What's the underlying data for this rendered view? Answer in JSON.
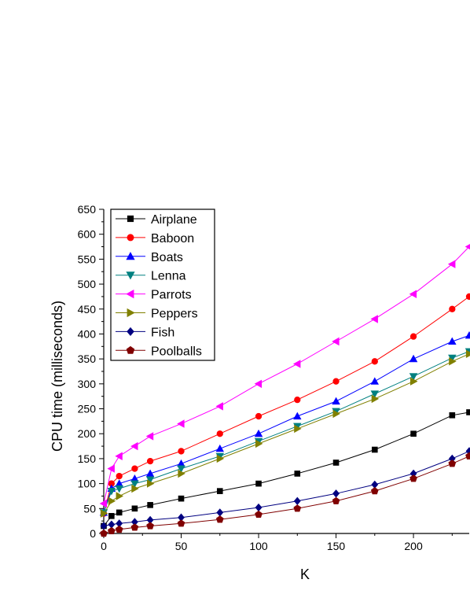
{
  "chart_data": {
    "type": "line",
    "title": "",
    "xlabel": "K",
    "ylabel": "CPU time (milliseconds)",
    "xlim": [
      0,
      236
    ],
    "ylim": [
      0,
      650
    ],
    "x_ticks": [
      0,
      50,
      100,
      150,
      200
    ],
    "y_ticks": [
      0,
      50,
      100,
      150,
      200,
      250,
      300,
      350,
      400,
      450,
      500,
      550,
      600,
      650
    ],
    "x_tick_labels": [
      "0",
      "50",
      "100",
      "150",
      "200"
    ],
    "y_tick_labels": [
      "0",
      "50",
      "100",
      "150",
      "200",
      "250",
      "300",
      "350",
      "400",
      "450",
      "500",
      "550",
      "600",
      "650"
    ],
    "grid": false,
    "legend_position": "top-left",
    "series": [
      {
        "name": "Airplane",
        "color": "#000000",
        "marker": "square",
        "x": [
          0,
          5,
          10,
          20,
          30,
          50,
          75,
          100,
          125,
          150,
          175,
          200,
          225,
          236
        ],
        "y": [
          15,
          35,
          42,
          50,
          57,
          70,
          85,
          100,
          120,
          142,
          168,
          200,
          237,
          243
        ]
      },
      {
        "name": "Baboon",
        "color": "#ff0000",
        "marker": "circle",
        "x": [
          0,
          5,
          10,
          20,
          30,
          50,
          75,
          100,
          125,
          150,
          175,
          200,
          225,
          236
        ],
        "y": [
          40,
          100,
          115,
          130,
          145,
          165,
          200,
          235,
          268,
          305,
          345,
          395,
          450,
          475
        ]
      },
      {
        "name": "Boats",
        "color": "#0000ff",
        "marker": "triangle-up",
        "x": [
          0,
          5,
          10,
          20,
          30,
          50,
          75,
          100,
          125,
          150,
          175,
          200,
          225,
          236
        ],
        "y": [
          42,
          90,
          100,
          110,
          120,
          140,
          170,
          200,
          235,
          265,
          305,
          350,
          385,
          397
        ]
      },
      {
        "name": "Lenna",
        "color": "#008080",
        "marker": "triangle-down",
        "x": [
          0,
          5,
          10,
          20,
          30,
          50,
          75,
          100,
          125,
          150,
          175,
          200,
          225,
          236
        ],
        "y": [
          42,
          85,
          90,
          100,
          108,
          130,
          155,
          185,
          215,
          245,
          280,
          315,
          352,
          365
        ]
      },
      {
        "name": "Parrots",
        "color": "#ff00ff",
        "marker": "triangle-left",
        "x": [
          0,
          5,
          10,
          20,
          30,
          50,
          75,
          100,
          125,
          150,
          175,
          200,
          225,
          236
        ],
        "y": [
          60,
          130,
          155,
          175,
          195,
          220,
          255,
          300,
          340,
          385,
          430,
          480,
          540,
          575
        ]
      },
      {
        "name": "Peppers",
        "color": "#808000",
        "marker": "triangle-right",
        "x": [
          0,
          5,
          10,
          20,
          30,
          50,
          75,
          100,
          125,
          150,
          175,
          200,
          225,
          236
        ],
        "y": [
          40,
          65,
          75,
          90,
          100,
          120,
          150,
          180,
          210,
          240,
          270,
          305,
          345,
          360
        ]
      },
      {
        "name": "Fish",
        "color": "#000080",
        "marker": "diamond",
        "x": [
          0,
          5,
          10,
          20,
          30,
          50,
          75,
          100,
          125,
          150,
          175,
          200,
          225,
          236
        ],
        "y": [
          15,
          18,
          20,
          23,
          27,
          32,
          42,
          52,
          65,
          80,
          98,
          120,
          150,
          165
        ]
      },
      {
        "name": "Poolballs",
        "color": "#800000",
        "marker": "pentagon",
        "x": [
          0,
          5,
          10,
          20,
          30,
          50,
          75,
          100,
          125,
          150,
          175,
          200,
          225,
          236
        ],
        "y": [
          0,
          5,
          8,
          12,
          15,
          20,
          28,
          38,
          50,
          65,
          85,
          110,
          140,
          155
        ]
      }
    ]
  }
}
